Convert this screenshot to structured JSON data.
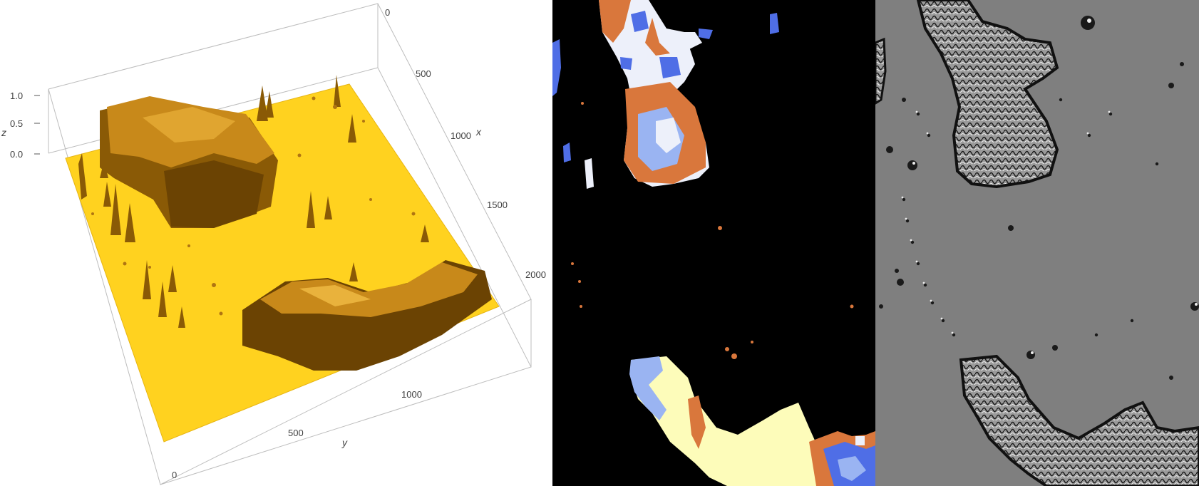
{
  "plot3d": {
    "x_axis": {
      "label": "x",
      "ticks": [
        "0",
        "500",
        "1000",
        "1500",
        "2000"
      ]
    },
    "y_axis": {
      "label": "y",
      "ticks": [
        "0",
        "500",
        "1000"
      ]
    },
    "z_axis": {
      "label": "z",
      "ticks": [
        "0.0",
        "0.5",
        "1.0"
      ]
    },
    "surface_color": "#ffd21f",
    "relief_color": "#8a5a06"
  },
  "classification": {
    "background": "#000000",
    "class_colors": {
      "orange": "#d9773c",
      "light-blue": "#9ab4f2",
      "blue": "#4f6ee6",
      "near-white": "#edf0fa",
      "pale-yellow": "#fdfcba"
    }
  },
  "relief": {
    "background": "#7f7f7f",
    "edge_dark": "#1a1a1a",
    "edge_light": "#ededed"
  }
}
